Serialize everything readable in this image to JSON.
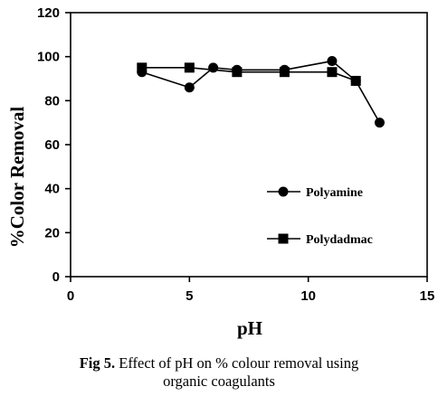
{
  "chart_data": {
    "type": "line",
    "xlabel": "pH",
    "ylabel": "%Color Removal",
    "xlim": [
      0,
      15
    ],
    "ylim": [
      0,
      120
    ],
    "xticks": [
      0,
      5,
      10,
      15
    ],
    "yticks": [
      0,
      20,
      40,
      60,
      80,
      100,
      120
    ],
    "grid": false,
    "legend_position": "center-right",
    "series": [
      {
        "name": "Polyamine",
        "marker": "circle",
        "color": "#000000",
        "x": [
          3,
          5,
          6,
          7,
          9,
          11,
          12,
          13
        ],
        "y": [
          93,
          86,
          95,
          94,
          94,
          98,
          89,
          70
        ]
      },
      {
        "name": "Polydadmac",
        "marker": "square",
        "color": "#000000",
        "x": [
          3,
          5,
          7,
          9,
          11,
          12
        ],
        "y": [
          95,
          95,
          93,
          93,
          93,
          89
        ]
      }
    ]
  },
  "caption": {
    "fig_no": "Fig 5.",
    "text_line1": " Effect of pH on % colour removal using",
    "text_line2": "organic coagulants"
  }
}
